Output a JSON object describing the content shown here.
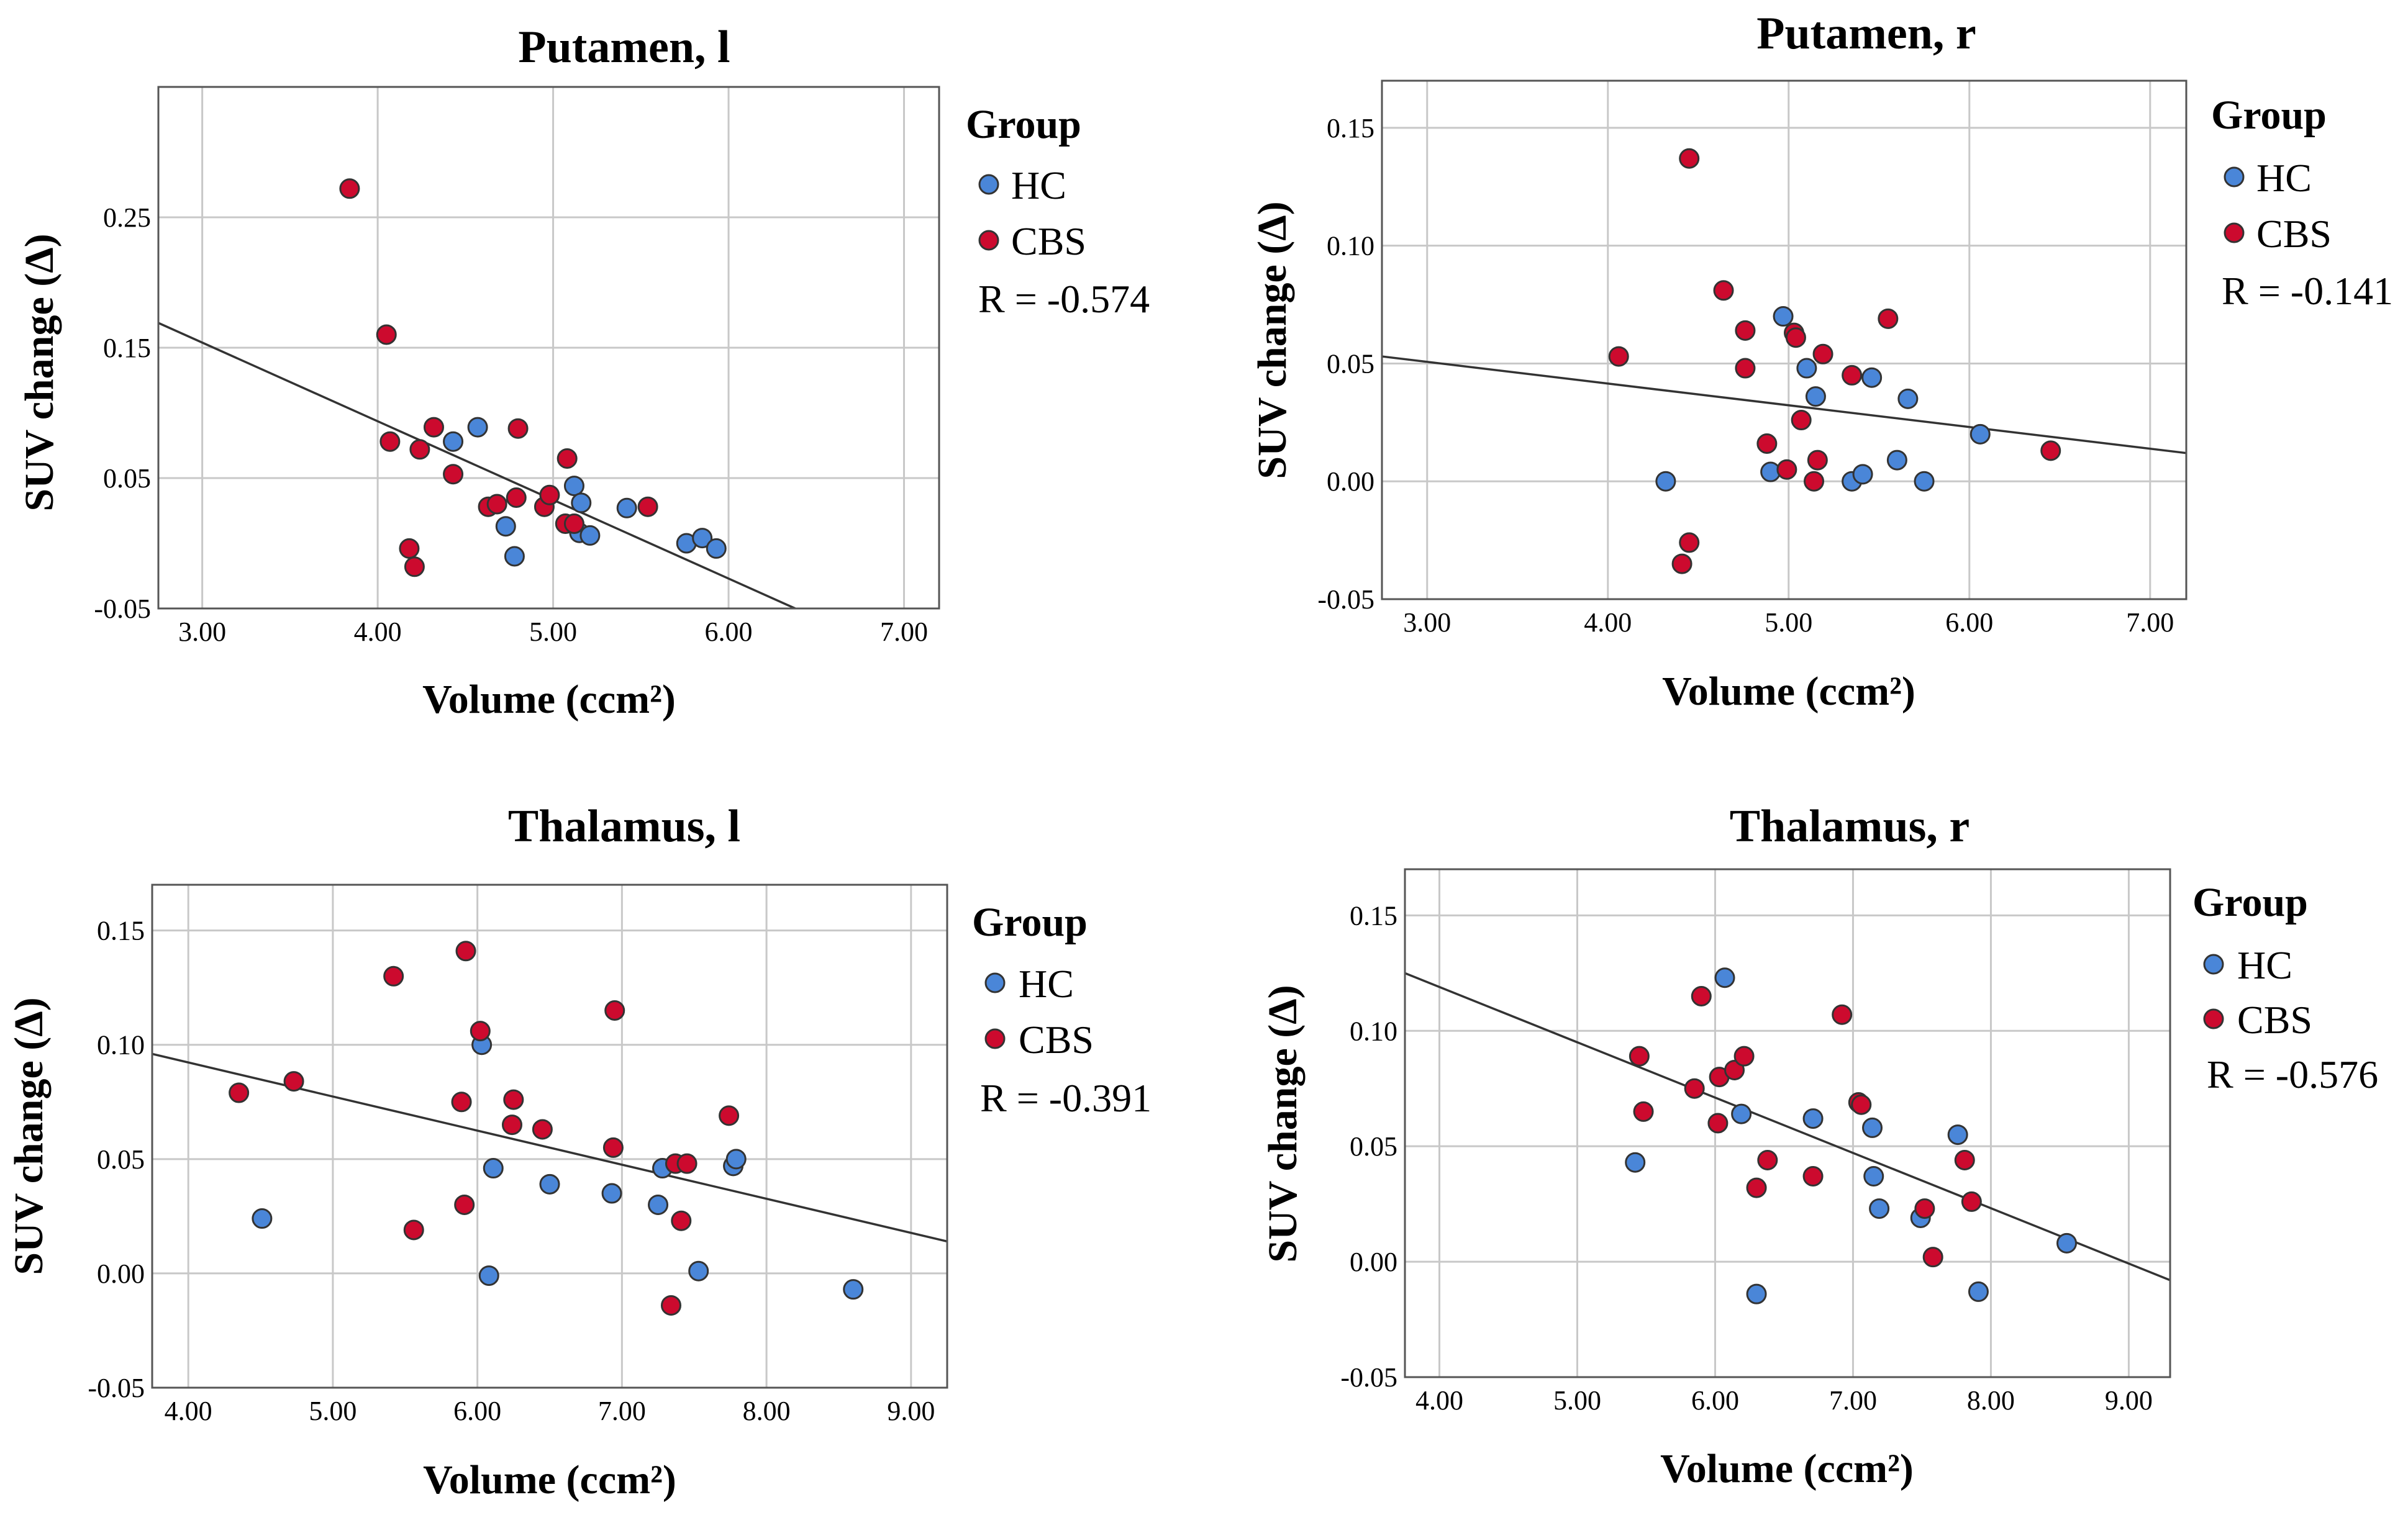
{
  "chart_data": [
    {
      "type": "scatter",
      "title": "Putamen, l",
      "xlabel": "Volume (ccm²)",
      "ylabel": "SUV change (Δ)",
      "xlim": [
        2.75,
        7.2
      ],
      "ylim": [
        -0.05,
        0.35
      ],
      "xticks": [
        3.0,
        4.0,
        5.0,
        6.0,
        7.0
      ],
      "xtick_labels": [
        "3.00",
        "4.00",
        "5.00",
        "6.00",
        "7.00"
      ],
      "yticks": [
        -0.05,
        0.05,
        0.15,
        0.25
      ],
      "ytick_labels": [
        "-0.05",
        "0.05",
        "0.15",
        "0.25"
      ],
      "legend": {
        "title": "Group",
        "entries": [
          "HC",
          "CBS"
        ],
        "r_text": "R = -0.574"
      },
      "fit": {
        "x": [
          2.75,
          6.38
        ],
        "y": [
          0.169,
          -0.05
        ]
      },
      "series": [
        {
          "name": "HC",
          "color": "#4a86d8",
          "points": [
            [
              4.43,
              0.078
            ],
            [
              4.57,
              0.089
            ],
            [
              4.73,
              0.013
            ],
            [
              4.78,
              -0.01
            ],
            [
              5.12,
              0.044
            ],
            [
              5.16,
              0.031
            ],
            [
              5.15,
              0.008
            ],
            [
              5.21,
              0.006
            ],
            [
              5.42,
              0.027
            ],
            [
              5.76,
              0.0
            ],
            [
              5.85,
              0.004
            ],
            [
              5.93,
              -0.004
            ]
          ]
        },
        {
          "name": "CBS",
          "color": "#cc0a2e",
          "points": [
            [
              3.84,
              0.272
            ],
            [
              4.05,
              0.16
            ],
            [
              4.07,
              0.078
            ],
            [
              4.18,
              -0.004
            ],
            [
              4.21,
              -0.018
            ],
            [
              4.24,
              0.072
            ],
            [
              4.32,
              0.089
            ],
            [
              4.43,
              0.053
            ],
            [
              4.63,
              0.028
            ],
            [
              4.68,
              0.03
            ],
            [
              4.79,
              0.035
            ],
            [
              4.8,
              0.088
            ],
            [
              4.95,
              0.028
            ],
            [
              4.98,
              0.037
            ],
            [
              5.07,
              0.015
            ],
            [
              5.08,
              0.065
            ],
            [
              5.12,
              0.015
            ],
            [
              5.54,
              0.028
            ]
          ]
        }
      ]
    },
    {
      "type": "scatter",
      "title": "Putamen, r",
      "xlabel": "Volume (ccm²)",
      "ylabel": "SUV change (Δ)",
      "xlim": [
        2.75,
        7.2
      ],
      "ylim": [
        -0.05,
        0.17
      ],
      "xticks": [
        3.0,
        4.0,
        5.0,
        6.0,
        7.0
      ],
      "xtick_labels": [
        "3.00",
        "4.00",
        "5.00",
        "6.00",
        "7.00"
      ],
      "yticks": [
        -0.05,
        0.0,
        0.05,
        0.1,
        0.15
      ],
      "ytick_labels": [
        "-0.05",
        "0.00",
        "0.05",
        "0.10",
        "0.15"
      ],
      "legend": {
        "title": "Group",
        "entries": [
          "HC",
          "CBS"
        ],
        "r_text": "R = -0.141"
      },
      "fit": {
        "x": [
          2.75,
          7.2
        ],
        "y": [
          0.053,
          0.012
        ]
      },
      "series": [
        {
          "name": "HC",
          "color": "#4a86d8",
          "points": [
            [
              4.32,
              0.0
            ],
            [
              4.9,
              0.004
            ],
            [
              4.97,
              0.07
            ],
            [
              5.1,
              0.048
            ],
            [
              5.15,
              0.036
            ],
            [
              5.35,
              0.0
            ],
            [
              5.41,
              0.003
            ],
            [
              5.46,
              0.044
            ],
            [
              5.6,
              0.009
            ],
            [
              5.66,
              0.035
            ],
            [
              5.75,
              0.0
            ],
            [
              6.06,
              0.02
            ]
          ]
        },
        {
          "name": "CBS",
          "color": "#cc0a2e",
          "points": [
            [
              4.06,
              0.053
            ],
            [
              4.41,
              -0.035
            ],
            [
              4.45,
              -0.026
            ],
            [
              4.45,
              0.137
            ],
            [
              4.64,
              0.081
            ],
            [
              4.76,
              0.064
            ],
            [
              4.76,
              0.048
            ],
            [
              4.88,
              0.016
            ],
            [
              4.99,
              0.005
            ],
            [
              5.03,
              0.063
            ],
            [
              5.04,
              0.061
            ],
            [
              5.07,
              0.026
            ],
            [
              5.14,
              0.0
            ],
            [
              5.16,
              0.009
            ],
            [
              5.19,
              0.054
            ],
            [
              5.35,
              0.045
            ],
            [
              5.55,
              0.069
            ],
            [
              6.45,
              0.013
            ]
          ]
        }
      ]
    },
    {
      "type": "scatter",
      "title": "Thalamus, l",
      "xlabel": "Volume (ccm²)",
      "ylabel": "SUV change (Δ)",
      "xlim": [
        3.75,
        9.25
      ],
      "ylim": [
        -0.05,
        0.17
      ],
      "xticks": [
        4.0,
        5.0,
        6.0,
        7.0,
        8.0,
        9.0
      ],
      "xtick_labels": [
        "4.00",
        "5.00",
        "6.00",
        "7.00",
        "8.00",
        "9.00"
      ],
      "yticks": [
        -0.05,
        0.0,
        0.05,
        0.1,
        0.15
      ],
      "ytick_labels": [
        "-0.05",
        "0.00",
        "0.05",
        "0.10",
        "0.15"
      ],
      "legend": {
        "title": "Group",
        "entries": [
          "HC",
          "CBS"
        ],
        "r_text": "R = -0.391"
      },
      "fit": {
        "x": [
          3.75,
          9.25
        ],
        "y": [
          0.096,
          0.014
        ]
      },
      "series": [
        {
          "name": "HC",
          "color": "#4a86d8",
          "points": [
            [
              4.51,
              0.024
            ],
            [
              6.03,
              0.1
            ],
            [
              6.08,
              -0.001
            ],
            [
              6.11,
              0.046
            ],
            [
              6.5,
              0.039
            ],
            [
              6.93,
              0.035
            ],
            [
              7.25,
              0.03
            ],
            [
              7.28,
              0.046
            ],
            [
              7.53,
              0.001
            ],
            [
              7.77,
              0.047
            ],
            [
              7.79,
              0.05
            ],
            [
              8.6,
              -0.007
            ]
          ]
        },
        {
          "name": "CBS",
          "color": "#cc0a2e",
          "points": [
            [
              4.35,
              0.079
            ],
            [
              4.73,
              0.084
            ],
            [
              5.42,
              0.13
            ],
            [
              5.56,
              0.019
            ],
            [
              5.89,
              0.075
            ],
            [
              5.91,
              0.03
            ],
            [
              5.92,
              0.141
            ],
            [
              6.02,
              0.106
            ],
            [
              6.24,
              0.065
            ],
            [
              6.25,
              0.076
            ],
            [
              6.45,
              0.063
            ],
            [
              6.94,
              0.055
            ],
            [
              6.95,
              0.115
            ],
            [
              7.34,
              -0.014
            ],
            [
              7.37,
              0.048
            ],
            [
              7.41,
              0.023
            ],
            [
              7.45,
              0.048
            ],
            [
              7.74,
              0.069
            ]
          ]
        }
      ]
    },
    {
      "type": "scatter",
      "title": "Thalamus, r",
      "xlabel": "Volume (ccm²)",
      "ylabel": "SUV change (Δ)",
      "xlim": [
        3.75,
        9.3
      ],
      "ylim": [
        -0.05,
        0.17
      ],
      "xticks": [
        4.0,
        5.0,
        6.0,
        7.0,
        8.0,
        9.0
      ],
      "xtick_labels": [
        "4.00",
        "5.00",
        "6.00",
        "7.00",
        "8.00",
        "9.00"
      ],
      "yticks": [
        -0.05,
        0.0,
        0.05,
        0.1,
        0.15
      ],
      "ytick_labels": [
        "-0.05",
        "0.00",
        "0.05",
        "0.10",
        "0.15"
      ],
      "legend": {
        "title": "Group",
        "entries": [
          "HC",
          "CBS"
        ],
        "r_text": "R = -0.576"
      },
      "fit": {
        "x": [
          3.75,
          9.3
        ],
        "y": [
          0.125,
          -0.008
        ]
      },
      "series": [
        {
          "name": "HC",
          "color": "#4a86d8",
          "points": [
            [
              5.42,
              0.043
            ],
            [
              6.07,
              0.123
            ],
            [
              6.19,
              0.064
            ],
            [
              6.3,
              -0.014
            ],
            [
              6.71,
              0.062
            ],
            [
              7.14,
              0.058
            ],
            [
              7.15,
              0.037
            ],
            [
              7.19,
              0.023
            ],
            [
              7.49,
              0.019
            ],
            [
              7.76,
              0.055
            ],
            [
              7.91,
              -0.013
            ],
            [
              8.55,
              0.008
            ]
          ]
        },
        {
          "name": "CBS",
          "color": "#cc0a2e",
          "points": [
            [
              5.45,
              0.089
            ],
            [
              5.48,
              0.065
            ],
            [
              5.85,
              0.075
            ],
            [
              5.9,
              0.115
            ],
            [
              6.02,
              0.06
            ],
            [
              6.03,
              0.08
            ],
            [
              6.14,
              0.083
            ],
            [
              6.21,
              0.089
            ],
            [
              6.3,
              0.032
            ],
            [
              6.38,
              0.044
            ],
            [
              6.71,
              0.037
            ],
            [
              6.92,
              0.107
            ],
            [
              7.04,
              0.069
            ],
            [
              7.06,
              0.068
            ],
            [
              7.52,
              0.023
            ],
            [
              7.58,
              0.002
            ],
            [
              7.81,
              0.044
            ],
            [
              7.86,
              0.026
            ]
          ]
        }
      ]
    }
  ]
}
